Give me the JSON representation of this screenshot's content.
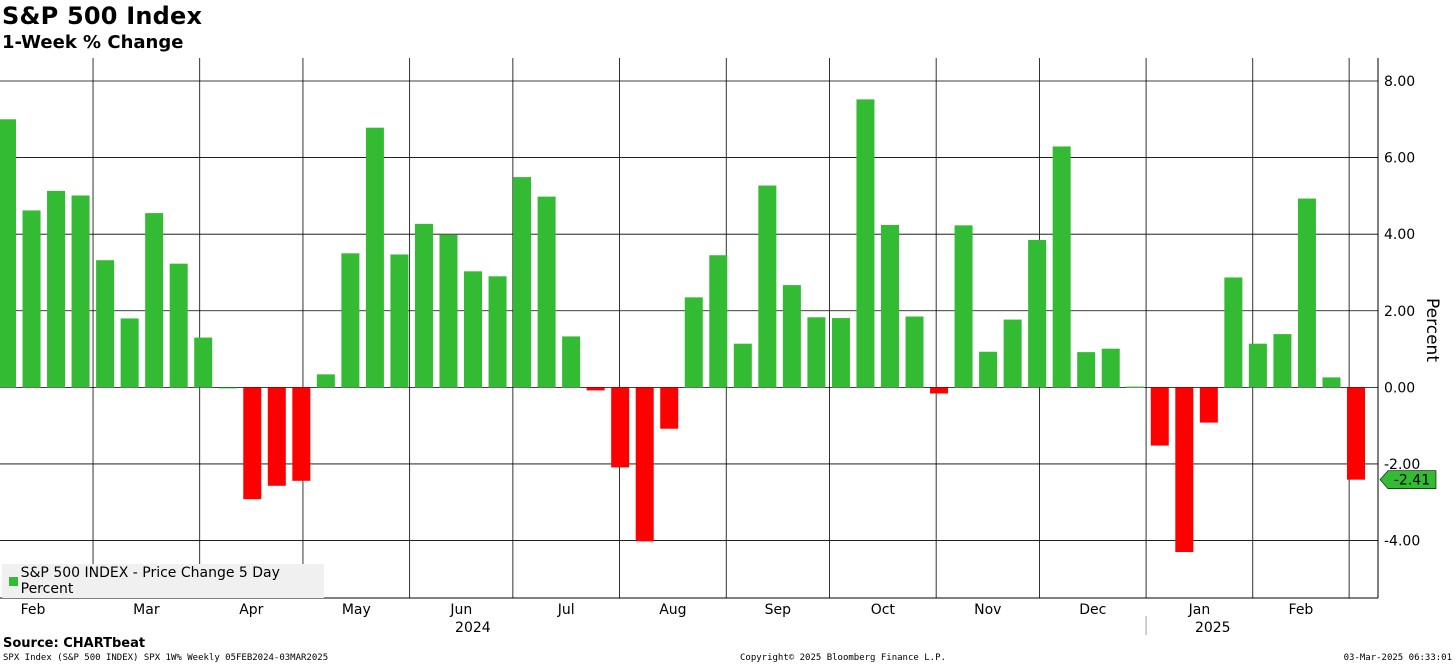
{
  "header": {
    "title": "S&P 500 Index",
    "subtitle": "1-Week % Change"
  },
  "legend": {
    "label": "S&P 500 INDEX - Price Change 5 Day Percent"
  },
  "source": "Source: CHARTbeat",
  "footer": {
    "left": "SPX Index (S&P 500 INDEX) SPX 1W% Weekly 05FEB2024-03MAR2025",
    "center": "Copyright© 2025 Bloomberg Finance L.P.",
    "right": "03-Mar-2025 06:33:01"
  },
  "colors": {
    "positive": "#33bb33",
    "negative": "#ff0000",
    "grid": "#000000",
    "last_value_bg": "#33bb33"
  },
  "chart_data": {
    "type": "bar",
    "title": "S&P 500 Index",
    "subtitle": "1-Week % Change",
    "ylabel": "Percent",
    "ylim": [
      -5.5,
      8.6
    ],
    "yticks": [
      -4,
      -2,
      0,
      2,
      4,
      6,
      8
    ],
    "ytick_labels": [
      "-4.00",
      "-2.00",
      "0.00",
      "2.00",
      "4.00",
      "6.00",
      "8.00"
    ],
    "last_value_label": "-2.41",
    "x_start": "2024-02-05",
    "x_end": "2025-03-03",
    "month_ticks": [
      {
        "label": "Feb",
        "date": "2024-02-01"
      },
      {
        "label": "Mar",
        "date": "2024-03-01"
      },
      {
        "label": "Apr",
        "date": "2024-04-01"
      },
      {
        "label": "May",
        "date": "2024-05-01"
      },
      {
        "label": "Jun",
        "date": "2024-06-01"
      },
      {
        "label": "Jul",
        "date": "2024-07-01"
      },
      {
        "label": "Aug",
        "date": "2024-08-01"
      },
      {
        "label": "Sep",
        "date": "2024-09-01"
      },
      {
        "label": "Oct",
        "date": "2024-10-01"
      },
      {
        "label": "Nov",
        "date": "2024-11-01"
      },
      {
        "label": "Dec",
        "date": "2024-12-01"
      },
      {
        "label": "Jan",
        "date": "2025-01-01"
      },
      {
        "label": "Feb",
        "date": "2025-02-01"
      },
      {
        "label": "",
        "date": "2025-03-01"
      }
    ],
    "year_labels": [
      {
        "label": "2024",
        "date": "2024-07-01"
      },
      {
        "label": "2025",
        "date": "2025-02-01"
      }
    ],
    "year_divider": "2025-01-01",
    "series": [
      {
        "values": [
          7.0,
          4.62,
          5.13,
          5.01,
          3.32,
          1.8,
          4.55,
          3.23,
          1.3,
          0.0,
          -2.92,
          -2.57,
          -2.44,
          0.34,
          3.5,
          6.78,
          3.47,
          4.27,
          3.98,
          3.03,
          2.9,
          5.49,
          4.98,
          1.33,
          -0.08,
          -2.09,
          -4.02,
          -1.08,
          2.35,
          3.45,
          1.14,
          5.27,
          2.67,
          1.83,
          1.81,
          7.52,
          4.24,
          1.85,
          -0.16,
          4.23,
          0.93,
          1.77,
          3.85,
          6.29,
          0.92,
          1.01,
          0.02,
          -1.52,
          -4.3,
          -0.92,
          2.87,
          1.14,
          1.39,
          4.93,
          0.26,
          -2.41
        ]
      }
    ],
    "grid": true,
    "legend_position": "bottom-left"
  }
}
